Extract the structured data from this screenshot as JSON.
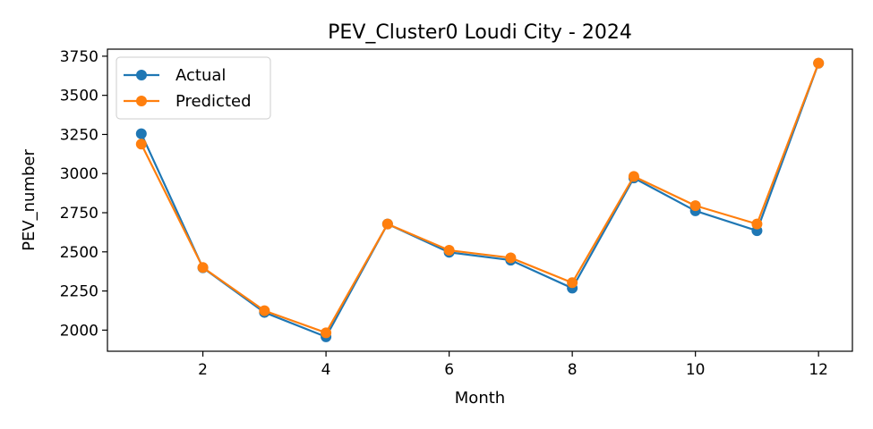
{
  "chart_data": {
    "type": "line",
    "title": "PEV_Cluster0 Loudi City - 2024",
    "xlabel": "Month",
    "ylabel": "PEV_number",
    "x": [
      1,
      2,
      3,
      4,
      5,
      6,
      7,
      8,
      9,
      10,
      11,
      12
    ],
    "xlim": [
      0.45,
      12.55
    ],
    "ylim": [
      1865,
      3795
    ],
    "xticks": [
      2,
      4,
      6,
      8,
      10,
      12
    ],
    "yticks": [
      2000,
      2250,
      2500,
      2750,
      3000,
      3250,
      3500,
      3750
    ],
    "grid": false,
    "legend_position": "top-left",
    "series": [
      {
        "name": "Actual",
        "color": "#1f77b4",
        "marker": "circle",
        "values": [
          3255,
          2398,
          2113,
          1957,
          2678,
          2497,
          2447,
          2268,
          2972,
          2762,
          2635,
          3705
        ]
      },
      {
        "name": "Predicted",
        "color": "#ff7f0e",
        "marker": "circle",
        "values": [
          3188,
          2400,
          2124,
          1983,
          2678,
          2510,
          2462,
          2303,
          2982,
          2795,
          2678,
          3706
        ]
      }
    ]
  }
}
